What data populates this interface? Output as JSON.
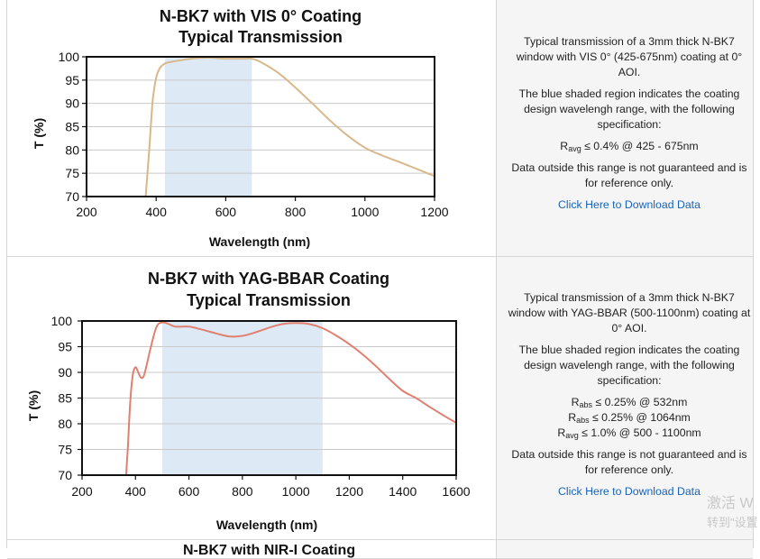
{
  "charts": [
    {
      "title_line1": "N-BK7 with VIS 0° Coating",
      "title_line2": "Typical Transmission",
      "xlabel": "Wavelength (nm)",
      "ylabel": "T (%)",
      "xticks": [
        "200",
        "400",
        "600",
        "800",
        "1000",
        "1200"
      ],
      "yticks": [
        "100",
        "95",
        "90",
        "85",
        "80",
        "75",
        "70"
      ],
      "curve_color": "#d8b88a",
      "shade_color": "#dde9f5"
    },
    {
      "title_line1": "N-BK7 with YAG-BBAR Coating",
      "title_line2": "Typical Transmission",
      "xlabel": "Wavelength (nm)",
      "ylabel": "T (%)",
      "xticks": [
        "200",
        "400",
        "600",
        "800",
        "1000",
        "1200",
        "1400",
        "1600"
      ],
      "yticks": [
        "100",
        "95",
        "90",
        "85",
        "80",
        "75",
        "70"
      ],
      "curve_color": "#e08070",
      "shade_color": "#dde9f5"
    }
  ],
  "chart_data": [
    {
      "type": "line",
      "title": "N-BK7 with VIS 0° Coating Typical Transmission",
      "xlabel": "Wavelength (nm)",
      "ylabel": "T (%)",
      "xlim": [
        200,
        1200
      ],
      "ylim": [
        70,
        100
      ],
      "shaded_region": [
        425,
        675
      ],
      "grid": true,
      "series": [
        {
          "x": [
            370,
            380,
            390,
            400,
            410,
            420,
            430,
            450,
            475,
            500,
            550,
            600,
            650,
            675,
            700,
            750,
            800,
            850,
            900,
            950,
            1000,
            1050,
            1100,
            1150,
            1200
          ],
          "y": [
            70.0,
            80.0,
            90.5,
            95.5,
            97.5,
            98.3,
            98.7,
            99.0,
            99.3,
            99.6,
            99.8,
            99.6,
            99.6,
            99.6,
            98.9,
            96.6,
            93.4,
            89.9,
            86.3,
            83.1,
            80.5,
            78.8,
            77.4,
            75.9,
            74.4
          ]
        }
      ]
    },
    {
      "type": "line",
      "title": "N-BK7 with YAG-BBAR Coating Typical Transmission",
      "xlabel": "Wavelength (nm)",
      "ylabel": "T (%)",
      "xlim": [
        200,
        1600
      ],
      "ylim": [
        70,
        100
      ],
      "shaded_region": [
        500,
        1100
      ],
      "grid": true,
      "series": [
        {
          "x": [
            365,
            372,
            380,
            390,
            400,
            410,
            420,
            430,
            440,
            460,
            480,
            500,
            520,
            550,
            600,
            650,
            700,
            750,
            800,
            850,
            900,
            950,
            1000,
            1050,
            1100,
            1150,
            1200,
            1250,
            1300,
            1350,
            1400,
            1450,
            1500,
            1550,
            1600
          ],
          "y": [
            70.0,
            76.0,
            84.0,
            89.5,
            91.0,
            90.0,
            89.0,
            89.2,
            91.0,
            95.5,
            99.0,
            99.7,
            99.5,
            98.9,
            98.9,
            98.3,
            97.6,
            97.0,
            97.1,
            97.8,
            98.7,
            99.4,
            99.6,
            99.4,
            98.6,
            97.2,
            95.5,
            93.5,
            91.2,
            88.7,
            86.4,
            85.0,
            83.3,
            81.7,
            80.2
          ]
        }
      ]
    }
  ],
  "descriptions": [
    {
      "p1": "Typical transmission of a 3mm thick N-BK7 window with VIS 0° (425-675nm) coating at 0° AOI.",
      "p2": "The blue shaded region indicates the coating design wavelengh range, with the following specification:",
      "specs": [
        {
          "sym": "R",
          "sub": "avg",
          "rest": " ≤ 0.4% @ 425 - 675nm"
        }
      ],
      "p3": "Data outside this range is not guaranteed and is for reference only.",
      "link": "Click Here to Download Data"
    },
    {
      "p1": "Typical transmission of a 3mm thick N-BK7 window with YAG-BBAR (500-1100nm) coating at 0° AOI.",
      "p2": "The blue shaded region indicates the coating design wavelengh range, with the following specification:",
      "specs": [
        {
          "sym": "R",
          "sub": "abs",
          "rest": " ≤ 0.25% @ 532nm"
        },
        {
          "sym": "R",
          "sub": "abs",
          "rest": " ≤ 0.25% @ 1064nm"
        },
        {
          "sym": "R",
          "sub": "avg",
          "rest": " ≤ 1.0% @ 500 - 1100nm"
        }
      ],
      "p3": "Data outside this range is not guaranteed and is for reference only.",
      "link": "Click Here to Download Data"
    }
  ],
  "row3_partial_title": "N-BK7 with NIR-I Coating",
  "watermark": {
    "line1": "激活 W",
    "line2": "转到\"设置"
  }
}
